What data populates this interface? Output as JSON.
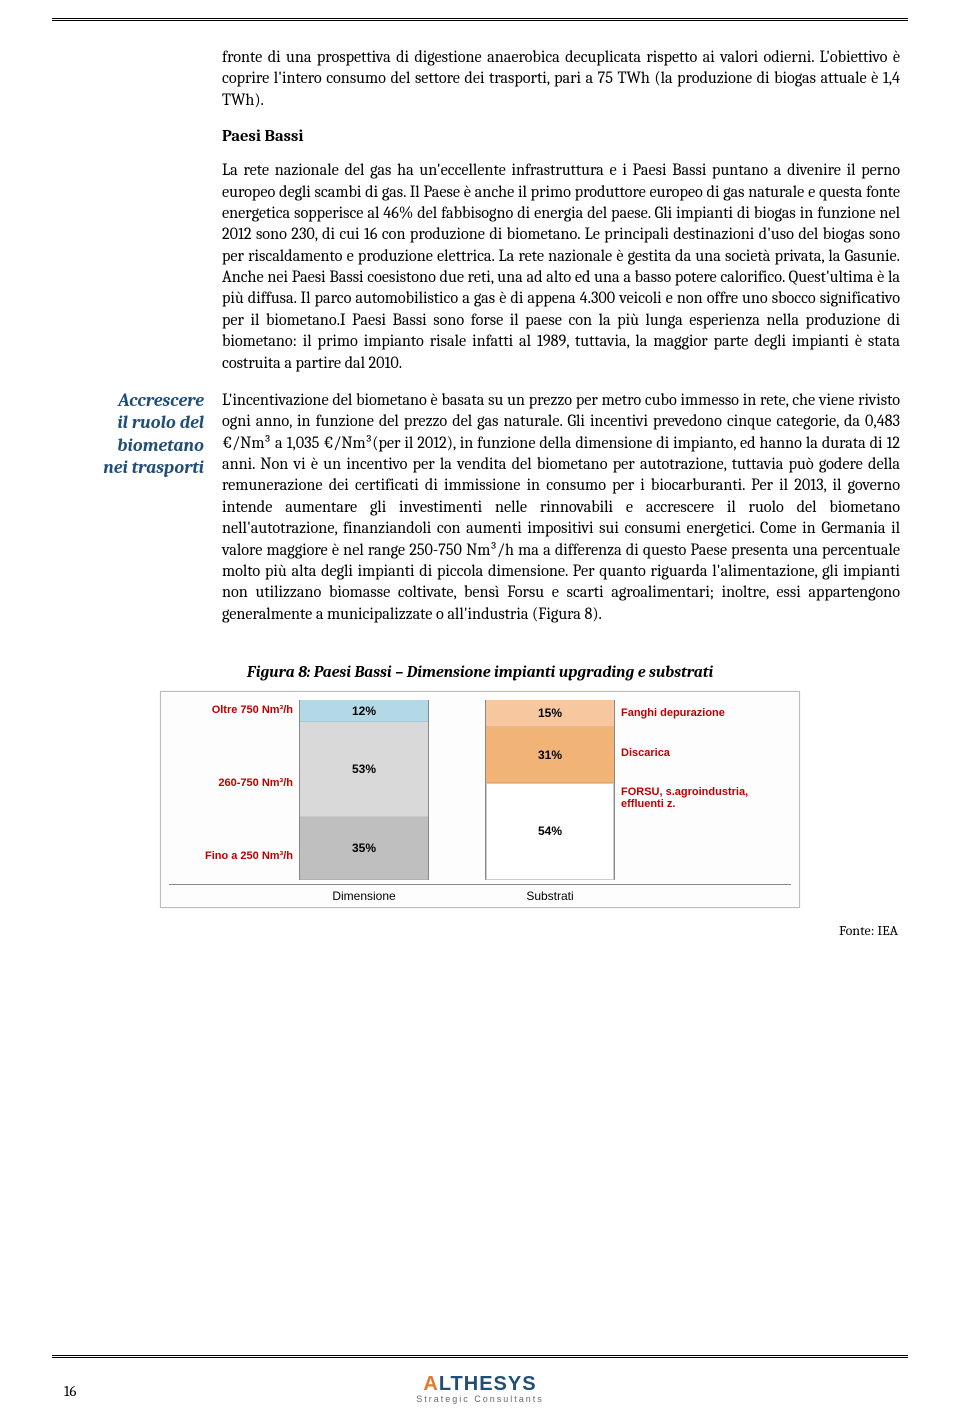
{
  "rules": {
    "color": "#000000"
  },
  "paragraphs": {
    "p1": "fronte di una prospettiva di digestione anaerobica decuplicata rispetto ai valori odierni. L'obiettivo è coprire l'intero consumo del settore dei trasporti, pari a 75 TWh (la produzione di biogas attuale è 1,4 TWh).",
    "section_title": "Paesi Bassi",
    "p2": "La rete nazionale del gas ha un'eccellente infrastruttura e i Paesi Bassi puntano a divenire il perno europeo degli scambi di gas. Il Paese è anche il primo produttore europeo di gas naturale e questa fonte energetica sopperisce al 46% del fabbisogno di energia del paese. Gli impianti di biogas in funzione nel 2012 sono 230, di cui 16 con produzione di biometano. Le principali destinazioni d'uso del biogas sono per riscaldamento e produzione elettrica. La rete nazionale è gestita da una società privata, la Gasunie. Anche nei Paesi Bassi coesistono due reti, una ad alto ed una a basso potere calorifico. Quest'ultima è la più diffusa. Il parco automobilistico a gas è di appena 4.300 veicoli e non offre uno sbocco significativo per il biometano.I Paesi Bassi sono forse il paese con la più lunga esperienza nella produzione di biometano: il primo impianto risale infatti al 1989, tuttavia,  la maggior parte degli impianti è stata costruita a partire dal 2010.",
    "p3": "L'incentivazione del biometano è basata su un prezzo per metro cubo immesso in rete, che viene rivisto ogni anno, in funzione del prezzo del gas naturale. Gli incentivi prevedono cinque categorie, da 0,483 €/Nm³ a 1,035 €/Nm³(per il 2012), in funzione della dimensione di impianto, ed hanno la durata di 12 anni. Non vi è un incentivo per la vendita del biometano per autotrazione, tuttavia può godere della remunerazione dei certificati di immissione in consumo per i biocarburanti. Per il 2013, il governo intende aumentare gli investimenti nelle rinnovabili e accrescere il ruolo del biometano nell'autotrazione, finanziandoli con aumenti impositivi sui consumi energetici. Come in Germania il valore maggiore è nel range 250-750 Nm³/h ma a differenza di questo Paese presenta una percentuale molto più alta degli impianti di piccola dimensione. Per quanto riguarda l'alimentazione, gli impianti non utilizzano biomasse coltivate, bensì Forsu e scarti agroalimentari; inoltre, essi appartengono generalmente a municipalizzate o all'industria (Figura 8)."
  },
  "side_label": {
    "line1": "Accrescere",
    "line2": "il ruolo del",
    "line3": "biometano",
    "line4": "nei trasporti",
    "color": "#1f4e79"
  },
  "figure": {
    "title": "Figura 8: Paesi Bassi – Dimensione impianti upgrading e substrati",
    "source": "Fonte: IEA",
    "chart": {
      "type": "stacked-bar",
      "background_color": "#fdfdfd",
      "border_color": "#bcbcbc",
      "label_color": "#c00000",
      "label_fontsize": 11,
      "value_fontsize": 12,
      "bar_border_color": "#888888",
      "bars": [
        {
          "axis_label": "Dimensione",
          "left_labels": [
            "Oltre 750 Nm³/h",
            "260-750 Nm³/h",
            "Fino a 250 Nm³/h"
          ],
          "segments": [
            {
              "label": "12%",
              "value": 12,
              "color": "#b3d8e6"
            },
            {
              "label": "53%",
              "value": 53,
              "color": "#d9d9d9"
            },
            {
              "label": "35%",
              "value": 35,
              "color": "#bfbfbf"
            }
          ]
        },
        {
          "axis_label": "Substrati",
          "right_labels": [
            "Fanghi depurazione",
            "Discarica",
            "FORSU, s.agroindustria, effluenti z."
          ],
          "segments": [
            {
              "label": "15%",
              "value": 15,
              "color": "#f7c8a0"
            },
            {
              "label": "31%",
              "value": 31,
              "color": "#f2b376"
            },
            {
              "label": "54%",
              "value": 54,
              "color": "#ffffff"
            }
          ]
        }
      ]
    }
  },
  "footer": {
    "page_number": "16",
    "logo_name_pre": "",
    "logo_name_amp": "A",
    "logo_name_post": "LTHESYS",
    "logo_sub": "Strategic Consultants"
  }
}
